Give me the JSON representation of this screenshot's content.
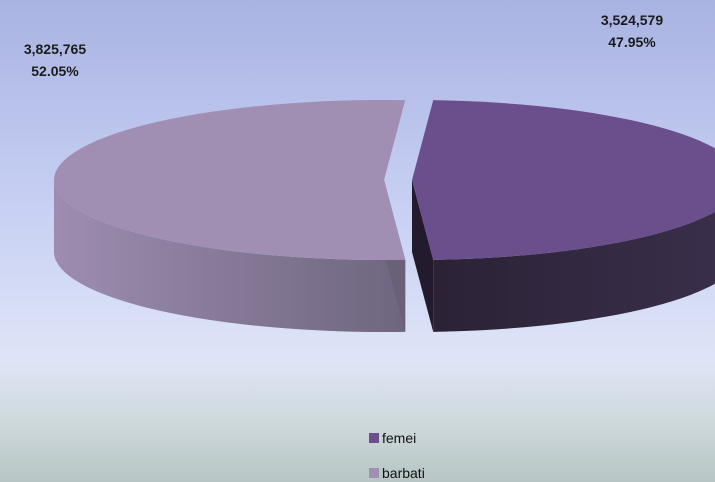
{
  "chart_data": {
    "type": "pie",
    "title": "",
    "three_d": true,
    "exploded": true,
    "slices": [
      {
        "name": "femei",
        "value": 3524579,
        "value_label": "3,524,579",
        "percent": 47.95,
        "percent_label": "47.95%",
        "color": "#6b4f8c"
      },
      {
        "name": "barbati",
        "value": 3825765,
        "value_label": "3,825,765",
        "percent": 52.05,
        "percent_label": "52.05%",
        "color": "#a08fb3"
      }
    ],
    "legend_position": "bottom"
  },
  "colors": {
    "background_top": "#a9b3e2",
    "background_bottom": "#b7c5c4",
    "femei_dark": "#2b2236",
    "barbati_dark": "#6e667f"
  }
}
